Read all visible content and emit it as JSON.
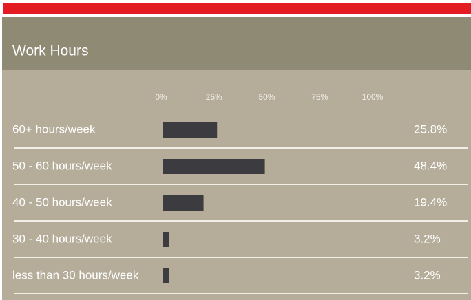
{
  "chart_data": {
    "type": "bar",
    "title": "Work Hours",
    "categories": [
      "60+ hours/week",
      "50 - 60 hours/week",
      "40 - 50 hours/week",
      "30 - 40 hours/week",
      "less than 30 hours/week"
    ],
    "values": [
      25.8,
      48.4,
      19.4,
      3.2,
      3.2
    ],
    "value_labels": [
      "25.8%",
      "48.4%",
      "19.4%",
      "3.2%",
      "3.2%"
    ],
    "color": "#3c3b3f",
    "xlim": [
      0,
      100
    ],
    "xticks": [
      {
        "value": 0,
        "label": "0%"
      },
      {
        "value": 25,
        "label": "25%"
      },
      {
        "value": 50,
        "label": "50%"
      },
      {
        "value": 75,
        "label": "75%"
      },
      {
        "value": 100,
        "label": "100%"
      }
    ]
  }
}
